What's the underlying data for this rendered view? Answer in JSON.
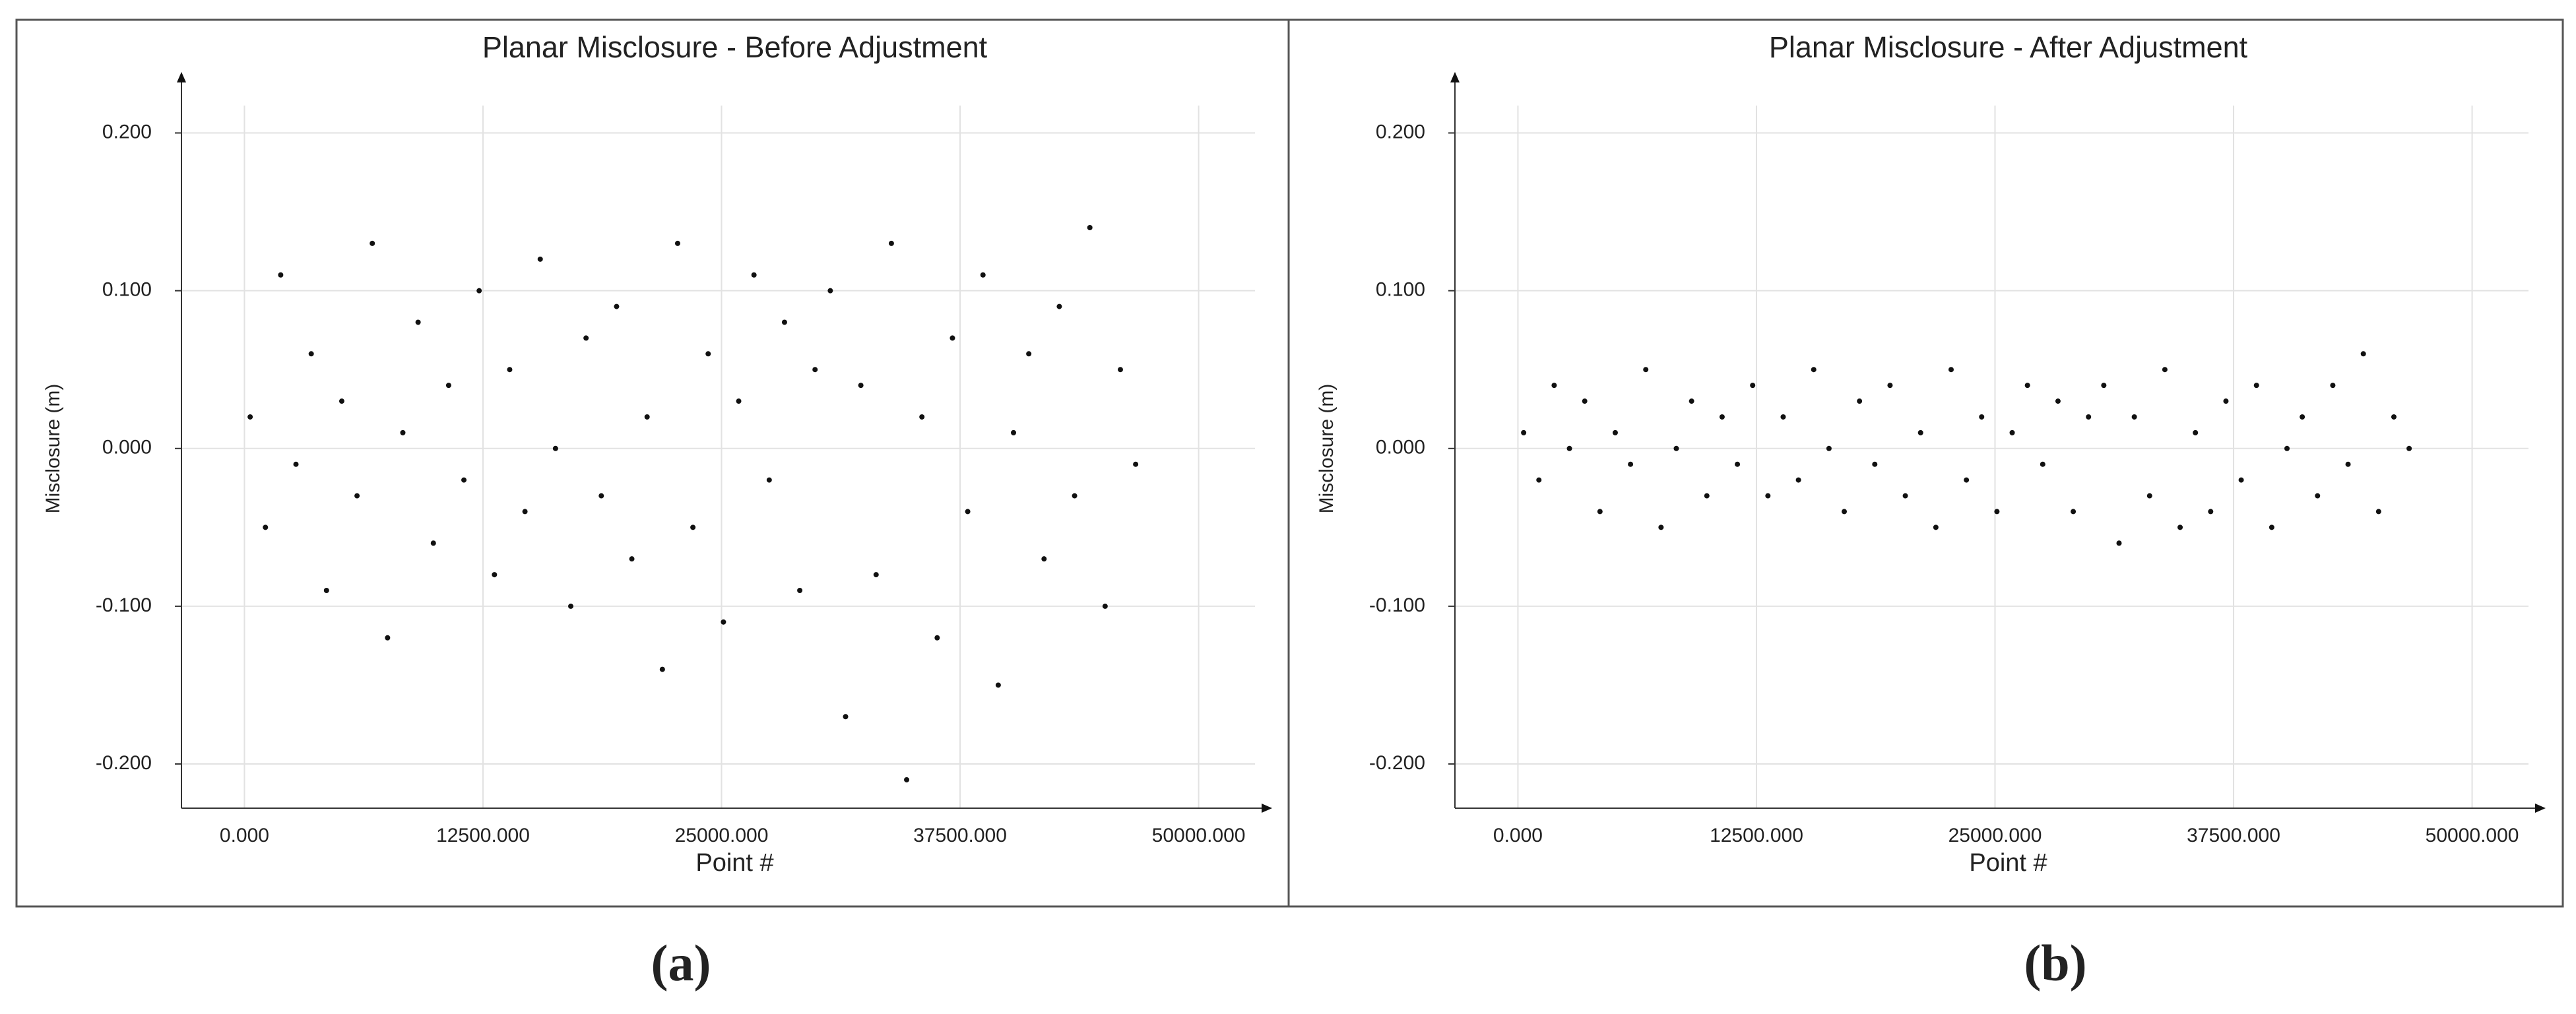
{
  "chart_data": [
    {
      "type": "scatter",
      "title": "Planar Misclosure - Before Adjustment",
      "x_label": "Point #",
      "y_label": "Misclosure (m)",
      "caption": "(a)",
      "color": "#111111",
      "grid": true,
      "xlim": [
        -3300,
        53300
      ],
      "ylim": [
        -0.228,
        0.232
      ],
      "xticks": [
        {
          "value": 0,
          "label": "0.000"
        },
        {
          "value": 12500,
          "label": "12500.000"
        },
        {
          "value": 25000,
          "label": "25000.000"
        },
        {
          "value": 37500,
          "label": "37500.000"
        },
        {
          "value": 50000,
          "label": "50000.000"
        }
      ],
      "yticks": [
        {
          "value": -0.2,
          "label": "-0.200"
        },
        {
          "value": -0.1,
          "label": "-0.100"
        },
        {
          "value": 0,
          "label": "0.000"
        },
        {
          "value": 0.1,
          "label": "0.100"
        },
        {
          "value": 0.2,
          "label": "0.200"
        }
      ],
      "x": [
        300,
        1100,
        1900,
        2700,
        3500,
        4300,
        5100,
        5900,
        6700,
        7500,
        8300,
        9100,
        9900,
        10700,
        11500,
        12300,
        13100,
        13900,
        14700,
        15500,
        16300,
        17100,
        17900,
        18700,
        19500,
        20300,
        21100,
        21900,
        22700,
        23500,
        24300,
        25100,
        25900,
        26700,
        27500,
        28300,
        29100,
        29900,
        30700,
        31500,
        32300,
        33100,
        33900,
        34700,
        35500,
        36300,
        37100,
        37900,
        38700,
        39500,
        40300,
        41100,
        41900,
        42700,
        43500,
        44300,
        45100,
        45900,
        46700
      ],
      "values": [
        0.02,
        -0.05,
        0.11,
        -0.01,
        0.06,
        -0.09,
        0.03,
        -0.03,
        0.13,
        -0.12,
        0.01,
        0.08,
        -0.06,
        0.04,
        -0.02,
        0.1,
        -0.08,
        0.05,
        -0.04,
        0.12,
        0.0,
        -0.1,
        0.07,
        -0.03,
        0.09,
        -0.07,
        0.02,
        -0.14,
        0.13,
        -0.05,
        0.06,
        -0.11,
        0.03,
        0.11,
        -0.02,
        0.08,
        -0.09,
        0.05,
        0.1,
        -0.17,
        0.04,
        -0.08,
        0.13,
        -0.21,
        0.02,
        -0.12,
        0.07,
        -0.04,
        0.11,
        -0.15,
        0.01,
        0.06,
        -0.07,
        0.09,
        -0.03,
        0.14,
        -0.1,
        0.05,
        -0.01
      ]
    },
    {
      "type": "scatter",
      "title": "Planar Misclosure - After Adjustment",
      "x_label": "Point #",
      "y_label": "Misclosure (m)",
      "caption": "(b)",
      "color": "#111111",
      "grid": true,
      "xlim": [
        -3300,
        53300
      ],
      "ylim": [
        -0.228,
        0.232
      ],
      "xticks": [
        {
          "value": 0,
          "label": "0.000"
        },
        {
          "value": 12500,
          "label": "12500.000"
        },
        {
          "value": 25000,
          "label": "25000.000"
        },
        {
          "value": 37500,
          "label": "37500.000"
        },
        {
          "value": 50000,
          "label": "50000.000"
        }
      ],
      "yticks": [
        {
          "value": -0.2,
          "label": "-0.200"
        },
        {
          "value": -0.1,
          "label": "-0.100"
        },
        {
          "value": 0,
          "label": "0.000"
        },
        {
          "value": 0.1,
          "label": "0.100"
        },
        {
          "value": 0.2,
          "label": "0.200"
        }
      ],
      "x": [
        300,
        1100,
        1900,
        2700,
        3500,
        4300,
        5100,
        5900,
        6700,
        7500,
        8300,
        9100,
        9900,
        10700,
        11500,
        12300,
        13100,
        13900,
        14700,
        15500,
        16300,
        17100,
        17900,
        18700,
        19500,
        20300,
        21100,
        21900,
        22700,
        23500,
        24300,
        25100,
        25900,
        26700,
        27500,
        28300,
        29100,
        29900,
        30700,
        31500,
        32300,
        33100,
        33900,
        34700,
        35500,
        36300,
        37100,
        37900,
        38700,
        39500,
        40300,
        41100,
        41900,
        42700,
        43500,
        44300,
        45100,
        45900,
        46700
      ],
      "values": [
        0.01,
        -0.02,
        0.04,
        0.0,
        0.03,
        -0.04,
        0.01,
        -0.01,
        0.05,
        -0.05,
        0.0,
        0.03,
        -0.03,
        0.02,
        -0.01,
        0.04,
        -0.03,
        0.02,
        -0.02,
        0.05,
        0.0,
        -0.04,
        0.03,
        -0.01,
        0.04,
        -0.03,
        0.01,
        -0.05,
        0.05,
        -0.02,
        0.02,
        -0.04,
        0.01,
        0.04,
        -0.01,
        0.03,
        -0.04,
        0.02,
        0.04,
        -0.06,
        0.02,
        -0.03,
        0.05,
        -0.05,
        0.01,
        -0.04,
        0.03,
        -0.02,
        0.04,
        -0.05,
        0.0,
        0.02,
        -0.03,
        0.04,
        -0.01,
        0.06,
        -0.04,
        0.02,
        0.0
      ]
    }
  ]
}
